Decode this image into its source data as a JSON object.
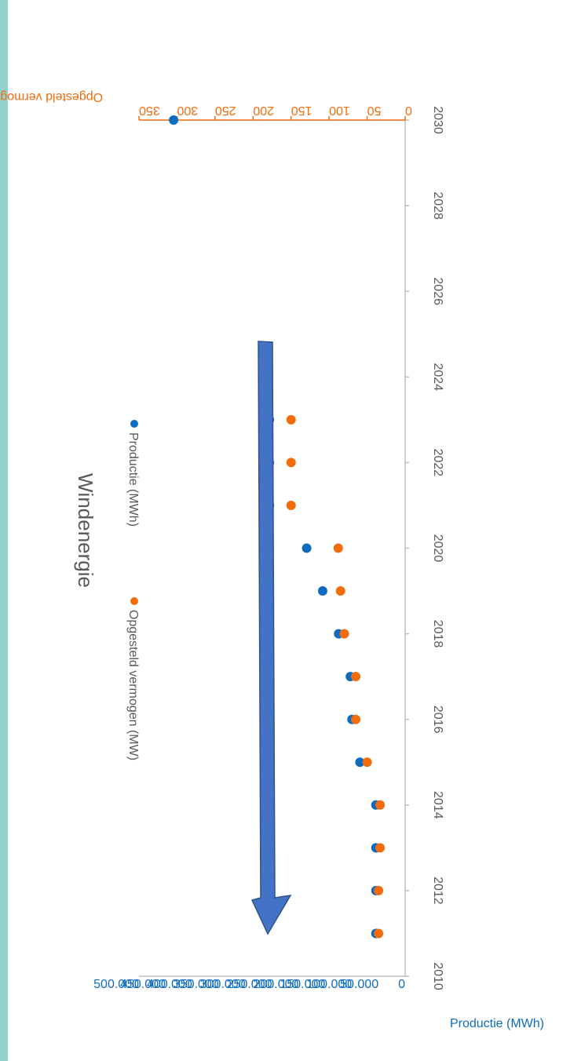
{
  "chart_data": {
    "type": "scatter",
    "title": "Windenergie",
    "x_axis": {
      "label": "",
      "min": 2010,
      "max": 2030,
      "step": 2,
      "ticks": [
        "2010",
        "2012",
        "2014",
        "2016",
        "2018",
        "2020",
        "2022",
        "2024",
        "2026",
        "2028",
        "2030"
      ]
    },
    "y_left": {
      "label": "Productie (MWh)",
      "min": 0,
      "max": 500000,
      "step": 50000,
      "ticks": [
        "0",
        "50.000",
        "100.000",
        "150.000",
        "200.000",
        "250.000",
        "300.000",
        "350.000",
        "400.000",
        "450.000",
        "500.000"
      ]
    },
    "y_right": {
      "label": "Opgesteld vermogen (MW)",
      "min": 0,
      "max": 350,
      "step": 50,
      "ticks": [
        "0",
        "50",
        "100",
        "150",
        "200",
        "250",
        "300",
        "350"
      ]
    },
    "series": [
      {
        "name": "Productie (MWh)",
        "axis": "left",
        "color": "#0e6cc0",
        "x": [
          2011,
          2012,
          2013,
          2014,
          2015,
          2016,
          2017,
          2018,
          2019,
          2020,
          2021,
          2022,
          2023,
          2030
        ],
        "y": [
          55000,
          55000,
          55000,
          55000,
          85000,
          100000,
          103000,
          125000,
          155000,
          185000,
          255000,
          255000,
          255000,
          435000
        ]
      },
      {
        "name": "Opgesteld vermogen (MW)",
        "axis": "right",
        "color": "#f26c0b",
        "x": [
          2011,
          2012,
          2013,
          2014,
          2015,
          2016,
          2017,
          2018,
          2019,
          2020,
          2021,
          2022,
          2023
        ],
        "y": [
          35,
          35,
          33,
          33,
          50,
          65,
          65,
          80,
          85,
          88,
          150,
          150,
          150
        ]
      }
    ],
    "legend_position": "top",
    "grid": false,
    "annotation": {
      "type": "arrow",
      "color": "#4472c4",
      "description": "upward trend arrow pointing toward 2030 target"
    }
  },
  "colors": {
    "left_strip": "#8fd3cc",
    "axis_line": "#bfbfbf",
    "arrow_fill": "#4472c4",
    "arrow_stroke": "#2f528f"
  }
}
